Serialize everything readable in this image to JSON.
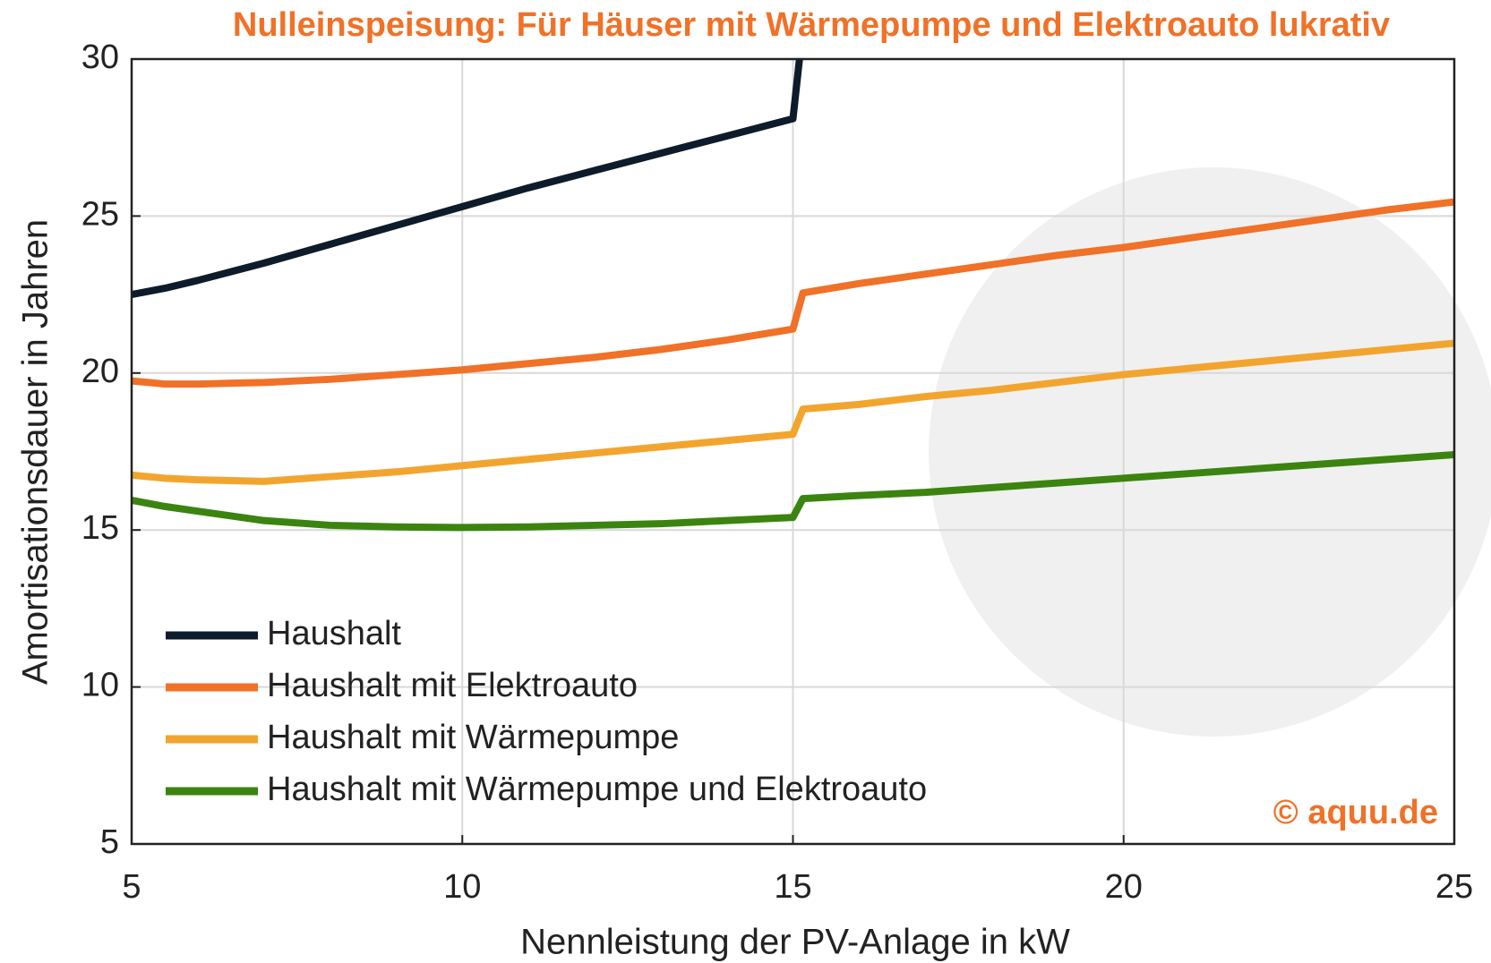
{
  "chart_data": {
    "type": "line",
    "title": "Nulleinspeisung: Für Häuser mit Wärmepumpe und Elektroauto lukrativ",
    "xlabel": "Nennleistung der PV-Anlage in kW",
    "ylabel": "Amortisationsdauer in Jahren",
    "annotation": "© aquu.de",
    "x": [
      5,
      5.5,
      6,
      7,
      8,
      9,
      10,
      11,
      12,
      13,
      14,
      15,
      15.15,
      16,
      17,
      18,
      19,
      20,
      21,
      22,
      23,
      24,
      25
    ],
    "series": [
      {
        "name": "Haushalt",
        "color": "#0d1b2a",
        "values": [
          22.5,
          22.7,
          22.95,
          23.5,
          24.1,
          24.7,
          25.3,
          25.9,
          26.45,
          27.0,
          27.55,
          28.1,
          31,
          null,
          null,
          null,
          null,
          null,
          null,
          null,
          null,
          null,
          null
        ]
      },
      {
        "name": "Haushalt mit Elektroauto",
        "color": "#f07128",
        "values": [
          19.75,
          19.65,
          19.65,
          19.7,
          19.8,
          19.95,
          20.1,
          20.3,
          20.5,
          20.75,
          21.05,
          21.4,
          22.55,
          22.85,
          23.15,
          23.45,
          23.75,
          24.0,
          24.3,
          24.6,
          24.9,
          25.2,
          25.45
        ]
      },
      {
        "name": "Haushalt mit Wärmepumpe",
        "color": "#f2a52e",
        "values": [
          16.75,
          16.65,
          16.6,
          16.55,
          16.7,
          16.85,
          17.05,
          17.25,
          17.45,
          17.65,
          17.85,
          18.05,
          18.85,
          19.0,
          19.25,
          19.45,
          19.7,
          19.95,
          20.15,
          20.35,
          20.55,
          20.75,
          20.95
        ]
      },
      {
        "name": "Haushalt mit Wärmepumpe und Elektroauto",
        "color": "#3b8410",
        "values": [
          15.95,
          15.75,
          15.6,
          15.3,
          15.15,
          15.1,
          15.08,
          15.1,
          15.15,
          15.2,
          15.3,
          15.4,
          16.0,
          16.1,
          16.2,
          16.35,
          16.5,
          16.65,
          16.8,
          16.95,
          17.1,
          17.25,
          17.4
        ]
      }
    ],
    "xlim": [
      5,
      25
    ],
    "xticks": [
      5,
      10,
      15,
      20,
      25
    ],
    "ylim": [
      5,
      30
    ],
    "yticks": [
      5,
      10,
      15,
      20,
      25,
      30
    ],
    "grid": true,
    "legend": "lower left"
  }
}
